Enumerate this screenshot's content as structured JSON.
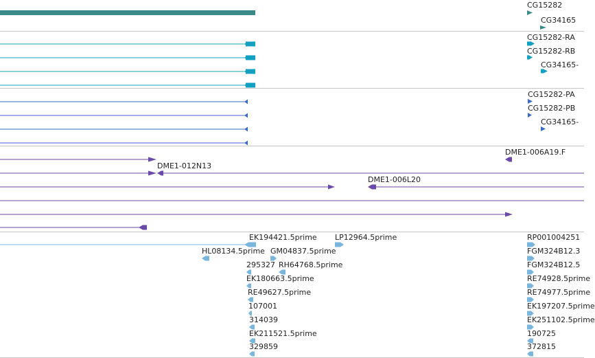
{
  "tracks": [
    {
      "name": "gene-track",
      "labels": [
        "CG15282",
        "CG34165"
      ]
    },
    {
      "name": "transcript-track",
      "labels": [
        "CG15282-RA",
        "CG15282-RB",
        "CG34165-"
      ]
    },
    {
      "name": "protein-track",
      "labels": [
        "CG15282-PA",
        "CG15282-PB",
        "CG34165-"
      ]
    },
    {
      "name": "bac-clone-track",
      "labels": [
        "DME1-006A19.F",
        "DME1-012N13",
        "DME1-006L20"
      ]
    },
    {
      "name": "est-track",
      "labels": [
        "EK194421.5prime",
        "LP12964.5prime",
        "RP001004251",
        "HL08134.5prime",
        "GM04837.5prime",
        "FGM324B12.3",
        "295327",
        "RH64768.5prime",
        "FGM324B12.5",
        "EK180663.5prime",
        "RE74928.5prime",
        "RE49627.5prime",
        "RE74977.5prime",
        "107001",
        "EK197207.5prime",
        "314039",
        "EK251102.5prime",
        "EK211521.5prime",
        "190725",
        "329859",
        "372815"
      ]
    }
  ],
  "colors": {
    "gene": "#3a8a8a",
    "transcript": "#14a0c0",
    "protein": "#3a6ac8",
    "clone": "#6a4aa8",
    "est": "#7ab6dc",
    "divider": "#c7c7c7",
    "label": "#222222"
  }
}
